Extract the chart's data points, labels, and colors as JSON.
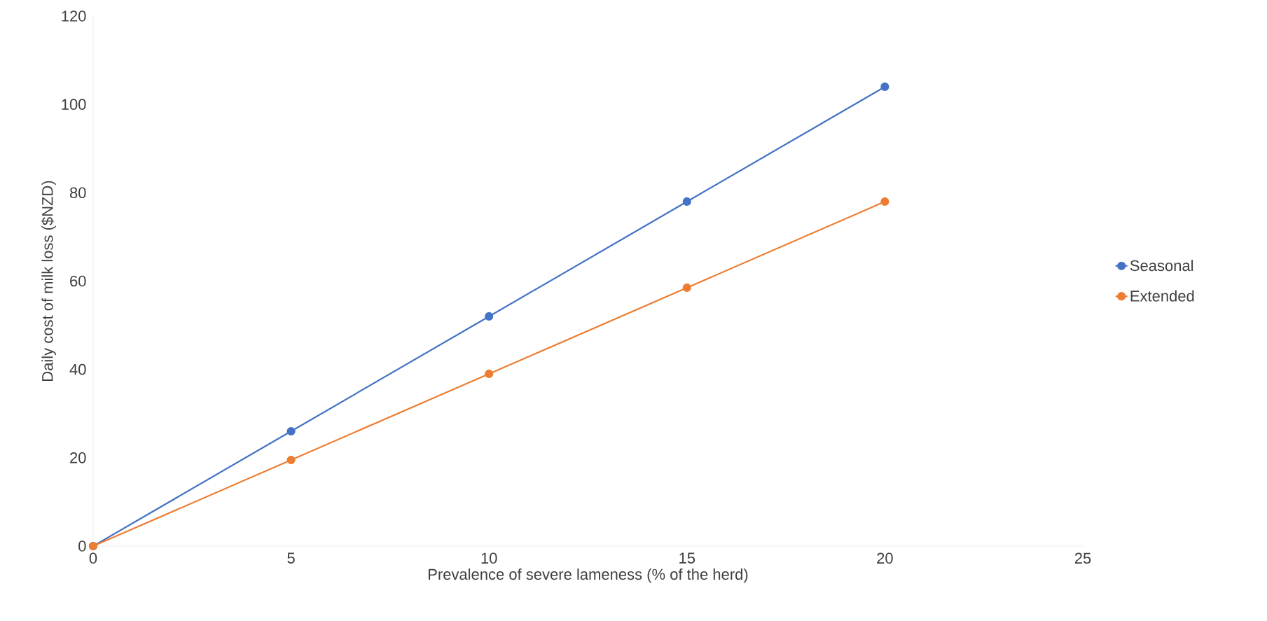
{
  "chart_data": {
    "type": "line",
    "xlabel": "Prevalence of severe lameness (% of the herd)",
    "ylabel": "Daily cost of milk loss ($NZD)",
    "x": [
      0,
      5,
      10,
      15,
      20
    ],
    "series": [
      {
        "name": "Seasonal",
        "color": "#4472c4",
        "values": [
          0,
          26,
          52,
          78,
          104
        ]
      },
      {
        "name": "Extended",
        "color": "#ed7d31",
        "values": [
          0,
          19.5,
          39,
          58.5,
          78
        ]
      }
    ],
    "xlim": [
      0,
      25
    ],
    "xticks": [
      0,
      5,
      10,
      15,
      20,
      25
    ],
    "ylim": [
      0,
      120
    ],
    "yticks": [
      0,
      20,
      40,
      60,
      80,
      100,
      120
    ],
    "grid": false,
    "legend": "right",
    "marker": "circle",
    "line_style": "solid"
  }
}
